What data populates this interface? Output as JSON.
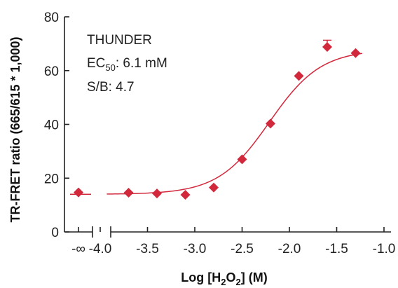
{
  "chart_data": {
    "type": "scatter",
    "xlabel": "Log [H2O2] (M)",
    "ylabel": "TR-FRET ratio (665/615 * 1,000)",
    "ylim": [
      0,
      80
    ],
    "xlim": [
      -4.2,
      -1.0
    ],
    "y_ticks": [
      "0",
      "20",
      "40",
      "60",
      "80"
    ],
    "x_ticks": [
      {
        "value": -4.0,
        "label": "-4.0"
      },
      {
        "value": -3.5,
        "label": "-3.5"
      },
      {
        "value": -3.0,
        "label": "-3.0"
      },
      {
        "value": -2.5,
        "label": "-2.5"
      },
      {
        "value": -2.0,
        "label": "-2.0"
      },
      {
        "value": -1.5,
        "label": "-1.5"
      },
      {
        "value": -1.0,
        "label": "-1.0"
      }
    ],
    "x_break_label": "-∞",
    "axis_break": true,
    "grid": false,
    "series": [
      {
        "color": "#d2283c",
        "marker": "diamond",
        "points": [
          {
            "x": "-∞",
            "y": 14.7
          },
          {
            "x": -3.7,
            "y": 14.6
          },
          {
            "x": -3.4,
            "y": 14.3
          },
          {
            "x": -3.1,
            "y": 13.8
          },
          {
            "x": -2.8,
            "y": 16.5
          },
          {
            "x": -2.5,
            "y": 27.0
          },
          {
            "x": -2.2,
            "y": 40.3
          },
          {
            "x": -1.9,
            "y": 58.0
          },
          {
            "x": -1.6,
            "y": 68.8,
            "error": 2.5
          },
          {
            "x": -1.3,
            "y": 66.5
          }
        ],
        "fit": {
          "bottom": 14.0,
          "top": 67.8,
          "log_ec50": -2.21,
          "hill": 1.6
        }
      }
    ],
    "annotations": {
      "name": "THUNDER",
      "ec50_prefix": "EC",
      "ec50_sub": "50",
      "ec50_value": ": 6.1 mM",
      "sb": "S/B: 4.7"
    },
    "xlabel_parts": {
      "prefix": "Log [H",
      "sub1": "2",
      "mid": "O",
      "sub2": "2",
      "suffix": "] (M)"
    }
  }
}
